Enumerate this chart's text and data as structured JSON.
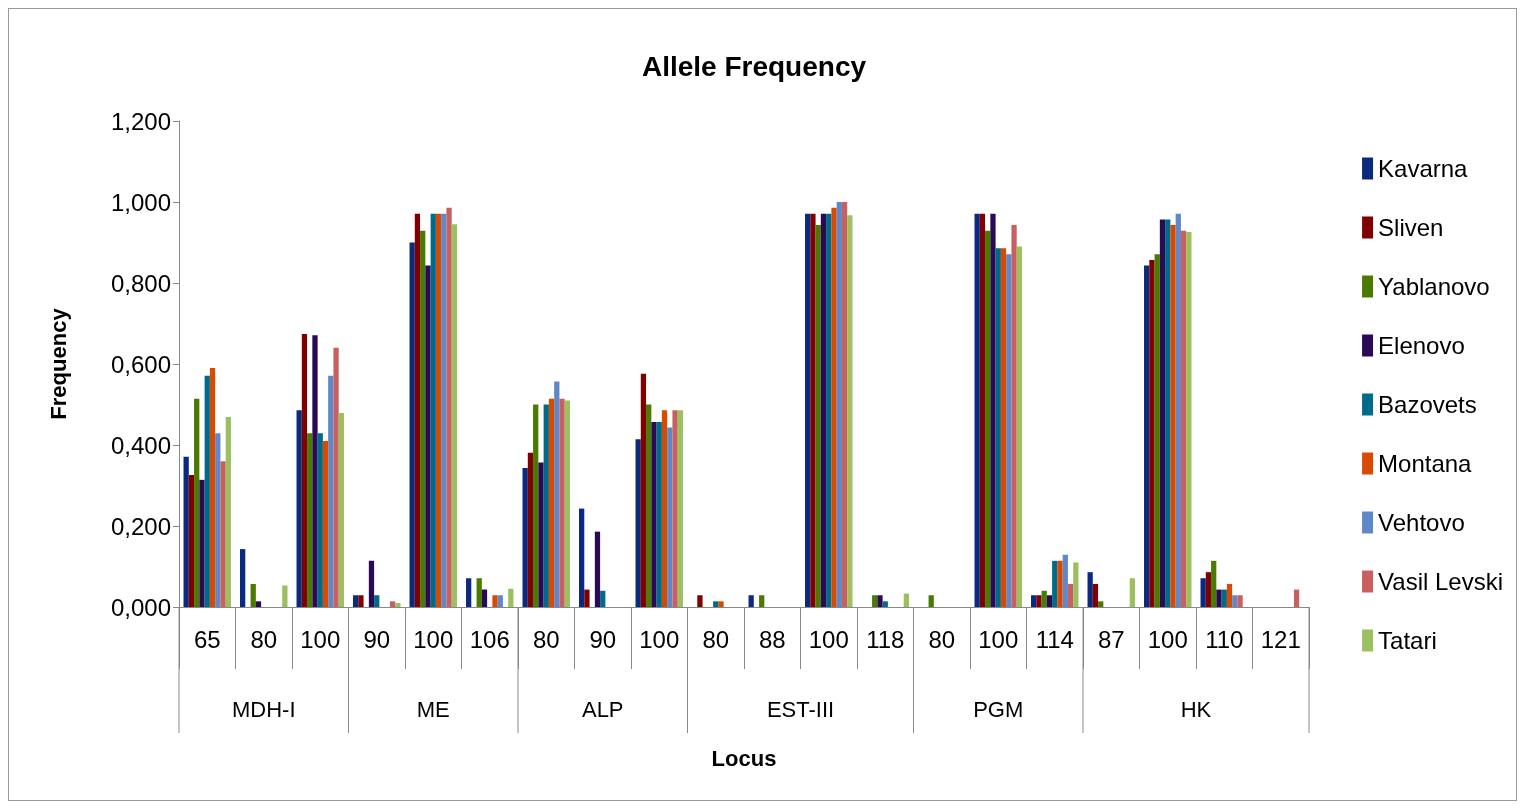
{
  "chart_data": {
    "type": "bar",
    "title": "Allele Frequency",
    "xlabel": "Locus",
    "ylabel": "Frequency",
    "categories": [
      "65",
      "80",
      "100",
      "90",
      "100",
      "106",
      "80",
      "90",
      "100",
      "80",
      "88",
      "100",
      "118",
      "80",
      "100",
      "114",
      "87",
      "100",
      "110",
      "121"
    ],
    "annotations": [
      "MDH-I",
      "ME",
      "ALP",
      "EST-III",
      "PGM",
      "HK"
    ],
    "series": [
      {
        "name": "Kavarna",
        "color": "#0b2a7f",
        "values": [
          0.371,
          0.143,
          0.486,
          0.029,
          0.9,
          0.071,
          0.343,
          0.243,
          0.414,
          0,
          0.029,
          0.971,
          0,
          0,
          0.971,
          0.029,
          0.086,
          0.843,
          0.071,
          0
        ]
      },
      {
        "name": "Sliven",
        "color": "#800000",
        "values": [
          0.326,
          0,
          0.674,
          0.029,
          0.971,
          0,
          0.381,
          0.043,
          0.576,
          0.029,
          0,
          0.971,
          0,
          0,
          0.971,
          0.029,
          0.057,
          0.857,
          0.086,
          0
        ]
      },
      {
        "name": "Yablanovo",
        "color": "#4a7a00",
        "values": [
          0.514,
          0.057,
          0.429,
          0,
          0.929,
          0.071,
          0.5,
          0,
          0.5,
          0,
          0.029,
          0.943,
          0.029,
          0.029,
          0.929,
          0.04,
          0.014,
          0.871,
          0.114,
          0
        ]
      },
      {
        "name": "Elenovo",
        "color": "#2a0a55",
        "values": [
          0.314,
          0.014,
          0.671,
          0.114,
          0.843,
          0.043,
          0.357,
          0.186,
          0.457,
          0,
          0,
          0.971,
          0.029,
          0,
          0.971,
          0.029,
          0,
          0.957,
          0.043,
          0
        ]
      },
      {
        "name": "Bazovets",
        "color": "#006a8a",
        "values": [
          0.571,
          0,
          0.429,
          0.029,
          0.971,
          0,
          0.5,
          0.04,
          0.457,
          0.014,
          0,
          0.971,
          0.014,
          0,
          0.886,
          0.114,
          0,
          0.957,
          0.043,
          0
        ]
      },
      {
        "name": "Montana",
        "color": "#d84a00",
        "values": [
          0.59,
          0,
          0.41,
          0,
          0.971,
          0.029,
          0.514,
          0,
          0.486,
          0.014,
          0,
          0.986,
          0,
          0,
          0.886,
          0.114,
          0,
          0.943,
          0.057,
          0
        ]
      },
      {
        "name": "Vehtovo",
        "color": "#6088c8",
        "values": [
          0.429,
          0,
          0.571,
          0,
          0.971,
          0.029,
          0.557,
          0,
          0.443,
          0,
          0,
          1.0,
          0,
          0,
          0.871,
          0.129,
          0,
          0.971,
          0.029,
          0
        ]
      },
      {
        "name": "Vasil Levski",
        "color": "#c86060",
        "values": [
          0.36,
          0,
          0.64,
          0.014,
          0.986,
          0,
          0.514,
          0,
          0.486,
          0,
          0,
          1.0,
          0,
          0,
          0.943,
          0.057,
          0,
          0.929,
          0.029,
          0.043
        ]
      },
      {
        "name": "Tatari",
        "color": "#9cc060",
        "values": [
          0.469,
          0.053,
          0.479,
          0.01,
          0.945,
          0.045,
          0.51,
          0,
          0.486,
          0,
          0,
          0.967,
          0.033,
          0,
          0.89,
          0.11,
          0.071,
          0.926,
          0,
          0
        ]
      }
    ],
    "ylim": [
      0,
      1.2
    ],
    "yticks": [
      {
        "value": 0,
        "label": "0,000"
      },
      {
        "value": 0.2,
        "label": "0,200"
      },
      {
        "value": 0.4,
        "label": "0,400"
      },
      {
        "value": 0.6,
        "label": "0,600"
      },
      {
        "value": 0.8,
        "label": "0,800"
      },
      {
        "value": 1.0,
        "label": "1,000"
      },
      {
        "value": 1.2,
        "label": "1,200"
      }
    ],
    "grid": false,
    "legend": "right"
  }
}
